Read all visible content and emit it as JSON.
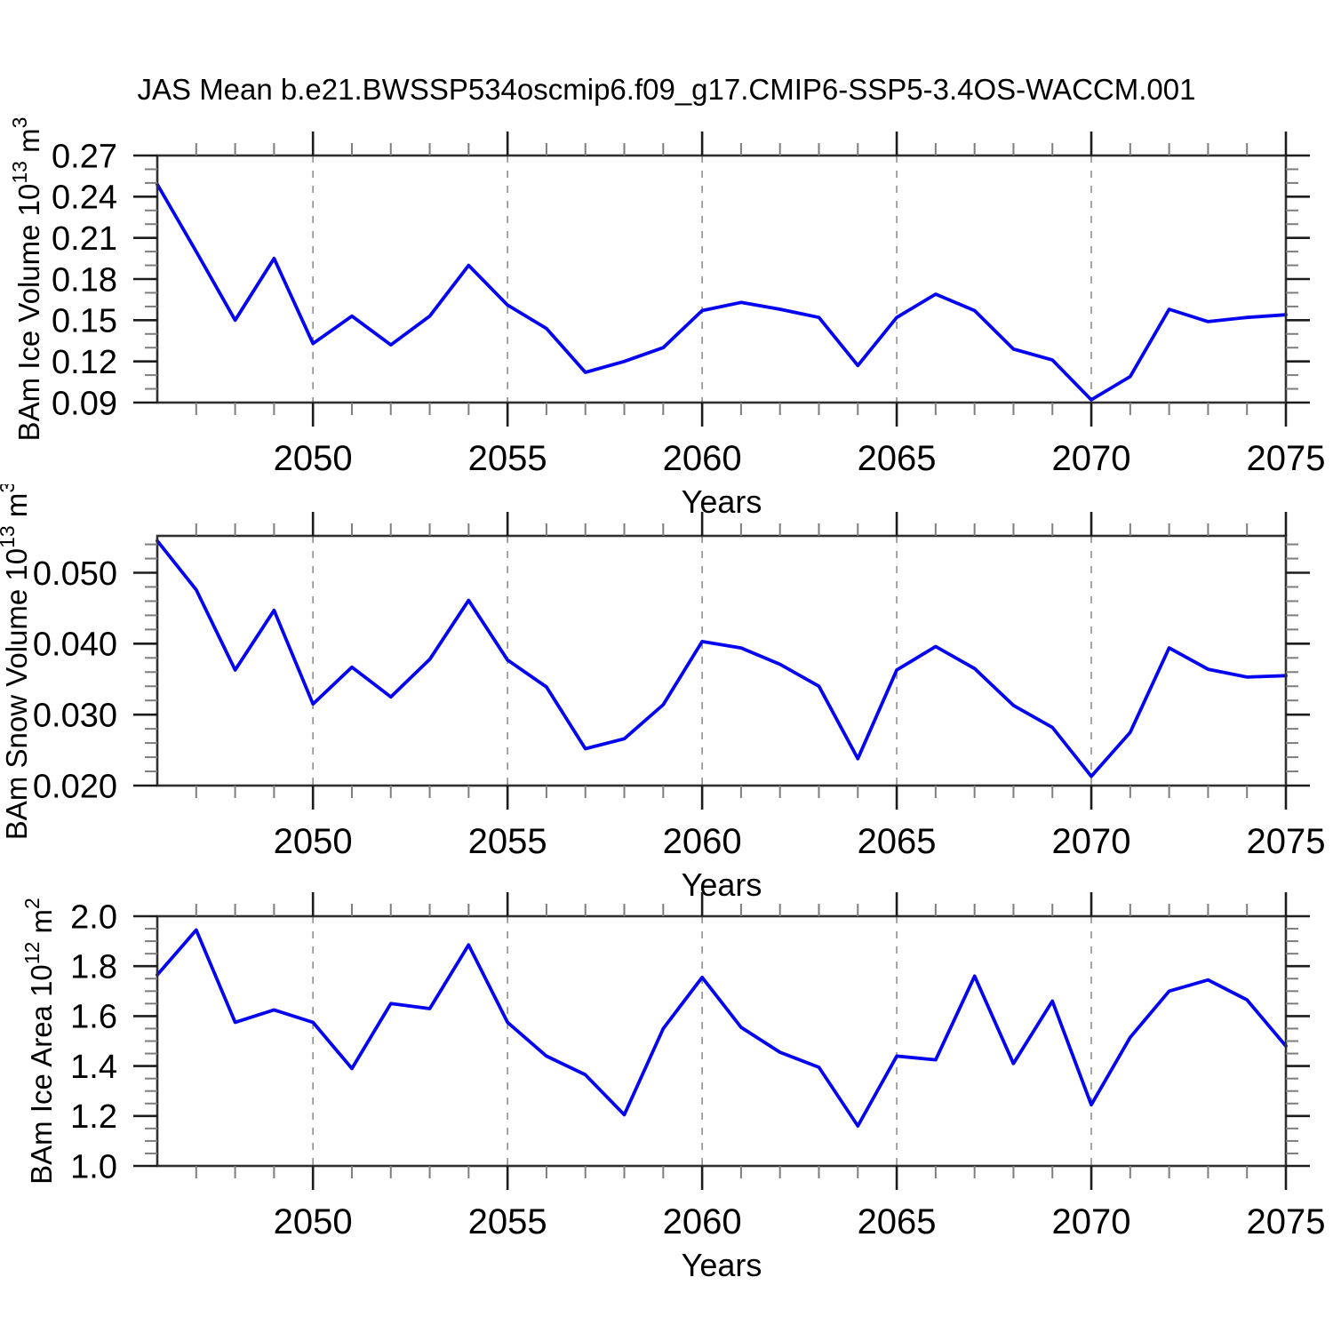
{
  "title": "JAS Mean b.e21.BWSSP534oscmip6.f09_g17.CMIP6-SSP5-3.4OS-WACCM.001",
  "colors": {
    "line": "#0404f0",
    "frame": "#2f2f2f",
    "major_tick": "#1c1c1c",
    "minor_tick": "#7e7e7e",
    "grid": "#8f8f8f",
    "text": "#000000",
    "background": "#ffffff"
  },
  "chart_data": [
    {
      "type": "line",
      "name": "bam-ice-volume",
      "ylabel": "BAm Ice Volume 10^13 m^3",
      "ylabel_rich": [
        {
          "t": "BAm Ice Volume 10"
        },
        {
          "t": "13",
          "sup": true
        },
        {
          "t": " m"
        },
        {
          "t": "3",
          "sup": true
        }
      ],
      "xlabel": "Years",
      "xlim": [
        2046,
        2075
      ],
      "ylim": [
        0.09,
        0.27
      ],
      "yticks": [
        0.09,
        0.12,
        0.15,
        0.18,
        0.21,
        0.24,
        0.27
      ],
      "ytick_labels": [
        "0.09",
        "0.12",
        "0.15",
        "0.18",
        "0.21",
        "0.24",
        "0.27"
      ],
      "yminor_step": 0.01,
      "xticks": [
        2050,
        2055,
        2060,
        2065,
        2070,
        2075
      ],
      "xtick_labels": [
        "2050",
        "2055",
        "2060",
        "2065",
        "2070",
        "2075"
      ],
      "xminor_step": 1,
      "grid_x": [
        2050,
        2055,
        2060,
        2065,
        2070
      ],
      "x": [
        2046,
        2047,
        2048,
        2049,
        2050,
        2051,
        2052,
        2053,
        2054,
        2055,
        2056,
        2057,
        2058,
        2059,
        2060,
        2061,
        2062,
        2063,
        2064,
        2065,
        2066,
        2067,
        2068,
        2069,
        2070,
        2071,
        2072,
        2073,
        2074,
        2075
      ],
      "values": [
        0.249,
        0.2,
        0.15,
        0.195,
        0.133,
        0.153,
        0.132,
        0.153,
        0.19,
        0.161,
        0.144,
        0.112,
        0.12,
        0.13,
        0.157,
        0.163,
        0.158,
        0.152,
        0.117,
        0.152,
        0.169,
        0.157,
        0.129,
        0.121,
        0.092,
        0.109,
        0.158,
        0.149,
        0.152,
        0.154
      ]
    },
    {
      "type": "line",
      "name": "bam-snow-volume",
      "ylabel": "BAm Snow Volume 10^13 m^3",
      "ylabel_rich": [
        {
          "t": "BAm Snow Volume 10"
        },
        {
          "t": "13",
          "sup": true
        },
        {
          "t": " m"
        },
        {
          "t": "3",
          "sup": true
        }
      ],
      "xlabel": "Years",
      "xlim": [
        2046,
        2075
      ],
      "ylim": [
        0.02,
        0.0552
      ],
      "yticks": [
        0.02,
        0.03,
        0.04,
        0.05
      ],
      "ytick_labels": [
        "0.020",
        "0.030",
        "0.040",
        "0.050"
      ],
      "yminor_step": 0.002,
      "xticks": [
        2050,
        2055,
        2060,
        2065,
        2070,
        2075
      ],
      "xtick_labels": [
        "2050",
        "2055",
        "2060",
        "2065",
        "2070",
        "2075"
      ],
      "xminor_step": 1,
      "grid_x": [
        2050,
        2055,
        2060,
        2065,
        2070
      ],
      "x": [
        2046,
        2047,
        2048,
        2049,
        2050,
        2051,
        2052,
        2053,
        2054,
        2055,
        2056,
        2057,
        2058,
        2059,
        2060,
        2061,
        2062,
        2063,
        2064,
        2065,
        2066,
        2067,
        2068,
        2069,
        2070,
        2071,
        2072,
        2073,
        2074,
        2075
      ],
      "values": [
        0.0545,
        0.0476,
        0.0363,
        0.0447,
        0.0315,
        0.0367,
        0.0325,
        0.0378,
        0.0461,
        0.0377,
        0.0339,
        0.0252,
        0.0266,
        0.0314,
        0.0403,
        0.0394,
        0.0371,
        0.034,
        0.0238,
        0.0363,
        0.0396,
        0.0365,
        0.0313,
        0.0282,
        0.0213,
        0.0275,
        0.0394,
        0.0364,
        0.0353,
        0.0355
      ]
    },
    {
      "type": "line",
      "name": "bam-ice-area",
      "ylabel": "BAm Ice Area 10^12 m^2",
      "ylabel_rich": [
        {
          "t": "BAm Ice Area 10"
        },
        {
          "t": "12",
          "sup": true
        },
        {
          "t": " m"
        },
        {
          "t": "2",
          "sup": true
        }
      ],
      "xlabel": "Years",
      "xlim": [
        2046,
        2075
      ],
      "ylim": [
        1.0,
        2.0
      ],
      "yticks": [
        1.0,
        1.2,
        1.4,
        1.6,
        1.8,
        2.0
      ],
      "ytick_labels": [
        "1.0",
        "1.2",
        "1.4",
        "1.6",
        "1.8",
        "2.0"
      ],
      "yminor_step": 0.05,
      "xticks": [
        2050,
        2055,
        2060,
        2065,
        2070,
        2075
      ],
      "xtick_labels": [
        "2050",
        "2055",
        "2060",
        "2065",
        "2070",
        "2075"
      ],
      "xminor_step": 1,
      "grid_x": [
        2050,
        2055,
        2060,
        2065,
        2070
      ],
      "x": [
        2046,
        2047,
        2048,
        2049,
        2050,
        2051,
        2052,
        2053,
        2054,
        2055,
        2056,
        2057,
        2058,
        2059,
        2060,
        2061,
        2062,
        2063,
        2064,
        2065,
        2066,
        2067,
        2068,
        2069,
        2070,
        2071,
        2072,
        2073,
        2074,
        2075
      ],
      "values": [
        1.765,
        1.945,
        1.575,
        1.625,
        1.575,
        1.39,
        1.65,
        1.63,
        1.885,
        1.575,
        1.44,
        1.365,
        1.205,
        1.55,
        1.755,
        1.555,
        1.455,
        1.395,
        1.16,
        1.44,
        1.425,
        1.76,
        1.41,
        1.66,
        1.245,
        1.515,
        1.7,
        1.745,
        1.665,
        1.48
      ]
    }
  ]
}
